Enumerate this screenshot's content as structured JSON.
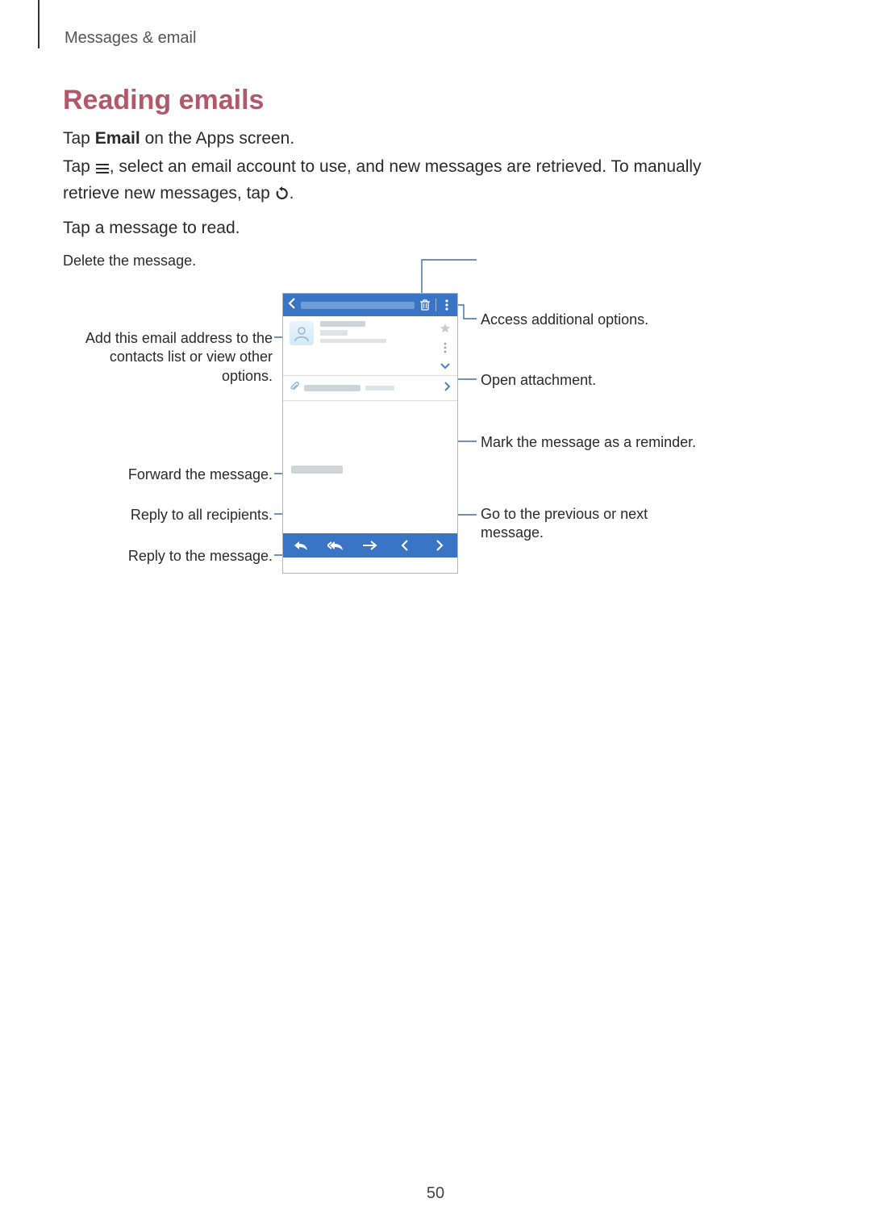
{
  "colors": {
    "heading": "#b1596a",
    "text": "#2a2a2a",
    "callout_line": "#3f6fa3",
    "phone_blue": "#3a74c4",
    "blur_gray": "#cfd4d8",
    "blur_gray_light": "#e0e3e6",
    "star_gray": "#bfc7cc",
    "chev_blue": "#4a7ec5",
    "attach_clip": "#8fb7d0"
  },
  "breadcrumb": "Messages & email",
  "heading": "Reading emails",
  "paragraphs": {
    "p1_pre": "Tap ",
    "p1_bold": "Email",
    "p1_post": " on the Apps screen.",
    "p2_pre": "Tap ",
    "p2_mid": ", select an email account to use, and new messages are retrieved. To manually retrieve new messages, tap ",
    "p2_post": ".",
    "p3": "Tap a message to read."
  },
  "callouts": {
    "delete": "Delete the message.",
    "options": "Access additional options.",
    "add_contact": "Add this email address to the contacts list or view other options.",
    "open_attach": "Open attachment.",
    "reminder": "Mark the message as a reminder.",
    "forward": "Forward the message.",
    "reply_all": "Reply to all recipients.",
    "reply": "Reply to the message.",
    "prev_next": "Go to the previous or next message."
  },
  "phone": {
    "icons": {
      "back": "chevron-left",
      "delete": "trash",
      "menu": "vertical-dots",
      "star": "star",
      "expand": "chevron-down",
      "attachment": "paperclip",
      "open": "chevron-right",
      "reply": "reply-arrow",
      "reply_all": "reply-all-arrow",
      "forward": "forward-arrow",
      "prev": "chevron-left",
      "next": "chevron-right"
    }
  },
  "page_number": "50"
}
